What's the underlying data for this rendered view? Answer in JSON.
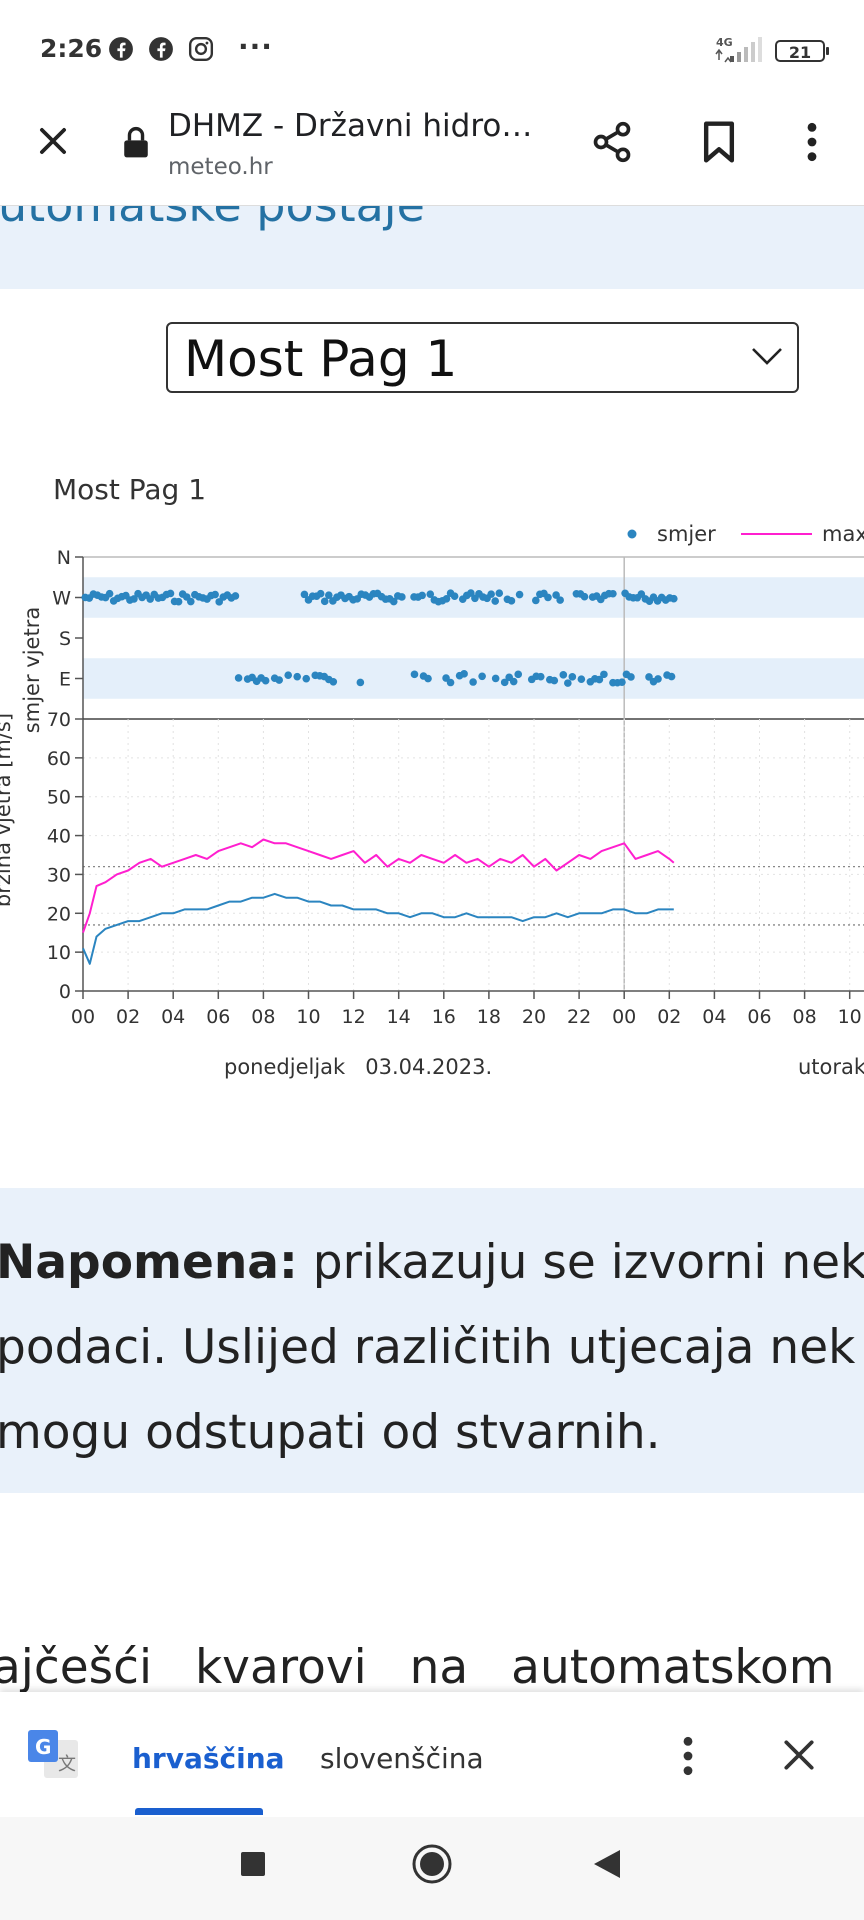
{
  "status_bar": {
    "time": "2:26",
    "network": "4G",
    "battery": "21"
  },
  "browser": {
    "title": "DHMZ - Državni hidro…",
    "url": "meteo.hr"
  },
  "page": {
    "heading_partial": "utomatske postaje",
    "station_selected": "Most Pag 1"
  },
  "chart_data": {
    "type": "scatter+line",
    "title": "Most Pag 1",
    "legend": [
      {
        "name": "smjer",
        "color": "#2b85c0",
        "marker": "dot"
      },
      {
        "name": "max",
        "color": "#ff1fcf",
        "marker": "line"
      }
    ],
    "legend_placement": "top-right",
    "top_panel": {
      "ylabel": "smjer vjetra",
      "y_ticks": [
        "N",
        "W",
        "S",
        "E"
      ],
      "y_range_deg": [
        0,
        360
      ],
      "description": "wind direction points (cluster near W and near E)"
    },
    "bottom_panel": {
      "ylabel": "brzina vjetra [m/s]",
      "y_ticks": [
        "0",
        "10",
        "20",
        "30",
        "40",
        "50",
        "60",
        "70"
      ],
      "ylim": [
        0,
        70
      ],
      "reference_lines": [
        17,
        32
      ]
    },
    "x_ticks": [
      "00",
      "02",
      "04",
      "06",
      "08",
      "10",
      "12",
      "14",
      "16",
      "18",
      "20",
      "22",
      "00",
      "02",
      "04",
      "06",
      "08",
      "10"
    ],
    "x_range_hours": [
      0,
      34
    ],
    "date_labels": [
      "ponedjeljak   03.04.2023.",
      "utorak"
    ],
    "series": [
      {
        "name": "max",
        "color": "#ff1fcf",
        "x": [
          0,
          0.3,
          0.6,
          1,
          1.5,
          2,
          2.5,
          3,
          3.5,
          4,
          4.5,
          5,
          5.5,
          6,
          6.5,
          7,
          7.5,
          8,
          8.5,
          9,
          9.5,
          10,
          10.5,
          11,
          11.5,
          12,
          12.5,
          13,
          13.5,
          14,
          14.5,
          15,
          15.5,
          16,
          16.5,
          17,
          17.5,
          18,
          18.5,
          19,
          19.5,
          20,
          20.5,
          21,
          21.5,
          22,
          22.5,
          23,
          23.5,
          24,
          24.5,
          25,
          25.5,
          26,
          26.2
        ],
        "values": [
          15,
          20,
          27,
          28,
          30,
          31,
          33,
          34,
          32,
          33,
          34,
          35,
          34,
          36,
          37,
          38,
          37,
          39,
          38,
          38,
          37,
          36,
          35,
          34,
          35,
          36,
          33,
          35,
          32,
          34,
          33,
          35,
          34,
          33,
          35,
          33,
          34,
          32,
          34,
          33,
          35,
          32,
          34,
          31,
          33,
          35,
          34,
          36,
          37,
          38,
          34,
          35,
          36,
          34,
          33
        ]
      },
      {
        "name": "smjer",
        "color": "#2b85c0",
        "x": [
          0,
          0.3,
          0.6,
          1,
          1.5,
          2,
          2.5,
          3,
          3.5,
          4,
          4.5,
          5,
          5.5,
          6,
          6.5,
          7,
          7.5,
          8,
          8.5,
          9,
          9.5,
          10,
          10.5,
          11,
          11.5,
          12,
          12.5,
          13,
          13.5,
          14,
          14.5,
          15,
          15.5,
          16,
          16.5,
          17,
          17.5,
          18,
          18.5,
          19,
          19.5,
          20,
          20.5,
          21,
          21.5,
          22,
          22.5,
          23,
          23.5,
          24,
          24.5,
          25,
          25.5,
          26,
          26.2
        ],
        "values": [
          11,
          7,
          14,
          16,
          17,
          18,
          18,
          19,
          20,
          20,
          21,
          21,
          21,
          22,
          23,
          23,
          24,
          24,
          25,
          24,
          24,
          23,
          23,
          22,
          22,
          21,
          21,
          21,
          20,
          20,
          19,
          20,
          20,
          19,
          19,
          20,
          19,
          19,
          19,
          19,
          18,
          19,
          19,
          20,
          19,
          20,
          20,
          20,
          21,
          21,
          20,
          20,
          21,
          21,
          21
        ]
      }
    ]
  },
  "note": {
    "label": "Napomena:",
    "lines": [
      " prikazuju se izvorni neko",
      "podaci. Uslijed različitih utjecaja nek",
      "mogu odstupati od stvarnih."
    ]
  },
  "body_snippet": "ajčešći kvarovi na automatskom",
  "translate_bar": {
    "languages": [
      "hrvaščina",
      "slovenščina"
    ],
    "active": "hrvaščina"
  },
  "colors": {
    "accent": "#1a5fcf",
    "band": "#e9f1fa",
    "heading": "#2471a3"
  }
}
